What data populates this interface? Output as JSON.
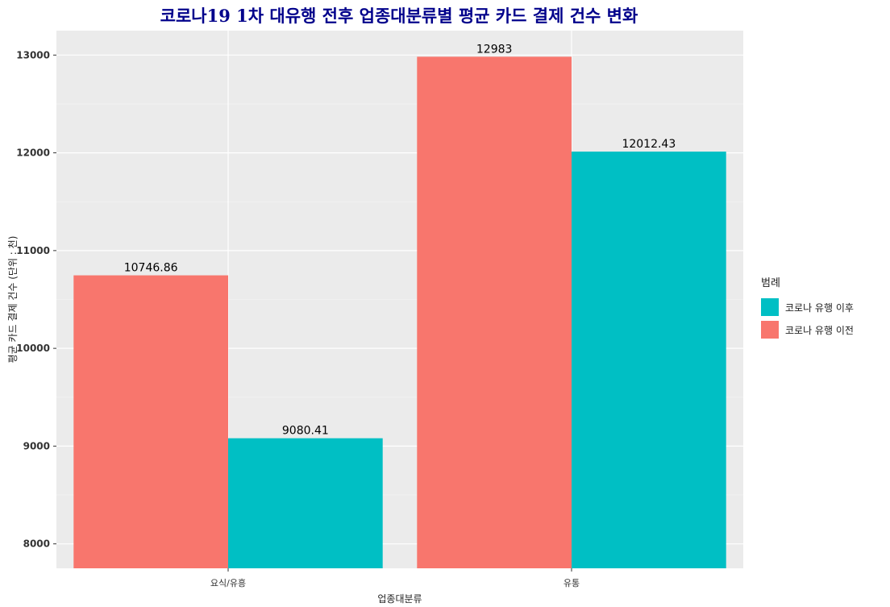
{
  "chart_data": {
    "type": "bar",
    "title": "코로나19 1차 대유행 전후 업종대분류별 평균 카드 결제 건수 변화",
    "xlabel": "업종대분류",
    "ylabel": "평균 카드 결제 건수 (단위 : 천)",
    "categories": [
      "요식/유흥",
      "유통"
    ],
    "series": [
      {
        "name": "코로나 유행 이전",
        "color": "#F8766D",
        "values": [
          10746.86,
          12983
        ]
      },
      {
        "name": "코로나 유행 이후",
        "color": "#00BFC4",
        "values": [
          9080.41,
          12012.43
        ]
      }
    ],
    "value_labels": [
      [
        "10746.86",
        "12983"
      ],
      [
        "9080.41",
        "12012.43"
      ]
    ],
    "ylim": [
      7750,
      13250
    ],
    "yticks": [
      8000,
      9000,
      10000,
      11000,
      12000,
      13000
    ],
    "grid": true,
    "legend": {
      "title": "범례",
      "position": "right",
      "entries": [
        {
          "label": "코로나 유행 이후",
          "color": "#00BFC4"
        },
        {
          "label": "코로나 유행 이전",
          "color": "#F8766D"
        }
      ]
    }
  }
}
